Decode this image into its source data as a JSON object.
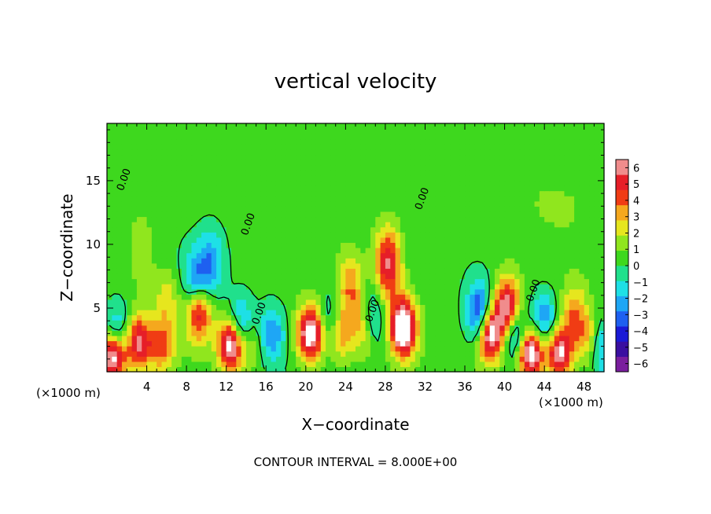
{
  "chart_data": {
    "type": "heatmap",
    "title": "vertical velocity",
    "xlabel": "X−coordinate",
    "ylabel": "Z−coordinate",
    "x_unit_left": "(×1000 m)",
    "x_unit_right": "(×1000 m)",
    "footer": "CONTOUR INTERVAL = 8.000E+00",
    "xlim": [
      0,
      50
    ],
    "ylim": [
      0,
      19.5
    ],
    "x_ticks": [
      {
        "value": 4,
        "label": "4"
      },
      {
        "value": 8,
        "label": "8"
      },
      {
        "value": 12,
        "label": "12"
      },
      {
        "value": 16,
        "label": "16"
      },
      {
        "value": 20,
        "label": "20"
      },
      {
        "value": 24,
        "label": "24"
      },
      {
        "value": 28,
        "label": "28"
      },
      {
        "value": 32,
        "label": "32"
      },
      {
        "value": 36,
        "label": "36"
      },
      {
        "value": 40,
        "label": "40"
      },
      {
        "value": 44,
        "label": "44"
      },
      {
        "value": 48,
        "label": "48"
      }
    ],
    "y_ticks": [
      {
        "value": 5,
        "label": "5"
      },
      {
        "value": 10,
        "label": "10"
      },
      {
        "value": 15,
        "label": "15"
      }
    ],
    "colorbar": {
      "vmin": -6,
      "vmax": 6,
      "ticks": [
        {
          "value": 6,
          "label": "6"
        },
        {
          "value": 5,
          "label": "5"
        },
        {
          "value": 4,
          "label": "4"
        },
        {
          "value": 3,
          "label": "3"
        },
        {
          "value": 2,
          "label": "2"
        },
        {
          "value": 1,
          "label": "1"
        },
        {
          "value": 0,
          "label": "0"
        },
        {
          "value": -1,
          "label": "−1"
        },
        {
          "value": -2,
          "label": "−2"
        },
        {
          "value": -3,
          "label": "−3"
        },
        {
          "value": -4,
          "label": "−4"
        },
        {
          "value": -5,
          "label": "−5"
        },
        {
          "value": -6,
          "label": "−6"
        }
      ],
      "colors": [
        "#7a1e9e",
        "#3a0fa0",
        "#1a1ad6",
        "#1e60f0",
        "#1ea6f5",
        "#1ee0e6",
        "#20e08c",
        "#3ed81e",
        "#90e61e",
        "#e6e61e",
        "#f5a81e",
        "#f03c14",
        "#e61e28",
        "#f08c8c"
      ]
    },
    "contour_labels": [
      {
        "x": 2.0,
        "y": 15.0,
        "text": "0.00"
      },
      {
        "x": 14.5,
        "y": 11.5,
        "text": "0.00"
      },
      {
        "x": 15.6,
        "y": 4.5,
        "text": "0.00"
      },
      {
        "x": 27.0,
        "y": 4.7,
        "text": "0.00"
      },
      {
        "x": 32.0,
        "y": 13.5,
        "text": "0.00"
      },
      {
        "x": 43.2,
        "y": 6.3,
        "text": "0.00"
      }
    ],
    "features": [
      {
        "x": 0.6,
        "z": 1.3,
        "w": 7
      },
      {
        "x": 1.0,
        "z": 3.0,
        "w": -3
      },
      {
        "x": 3.2,
        "z": 2.4,
        "w": 5
      },
      {
        "x": 3.5,
        "z": 9.5,
        "w": 1.5
      },
      {
        "x": 5.5,
        "z": 2.0,
        "w": 3
      },
      {
        "x": 6.0,
        "z": 5.5,
        "w": 2
      },
      {
        "x": 9.0,
        "z": 6.5,
        "w": -5
      },
      {
        "x": 9.2,
        "z": 5.0,
        "w": 7
      },
      {
        "x": 10.5,
        "z": 8.5,
        "w": -2.5
      },
      {
        "x": 12.5,
        "z": 2.2,
        "w": 7
      },
      {
        "x": 13.5,
        "z": 3.5,
        "w": -4
      },
      {
        "x": 14.5,
        "z": 2.5,
        "w": 2
      },
      {
        "x": 16.5,
        "z": 3.0,
        "w": -3
      },
      {
        "x": 20.5,
        "z": 3.0,
        "w": 7
      },
      {
        "x": 22.5,
        "z": 4.0,
        "w": -2
      },
      {
        "x": 23.5,
        "z": 3.0,
        "w": 3
      },
      {
        "x": 24.5,
        "z": 6.5,
        "w": 3
      },
      {
        "x": 26.0,
        "z": 3.5,
        "w": 4
      },
      {
        "x": 26.5,
        "z": 4.0,
        "w": -4
      },
      {
        "x": 28.3,
        "z": 8.5,
        "w": 5
      },
      {
        "x": 29.8,
        "z": 3.5,
        "w": 8
      },
      {
        "x": 37.5,
        "z": 4.5,
        "w": -5
      },
      {
        "x": 38.5,
        "z": 3.0,
        "w": 7
      },
      {
        "x": 40.3,
        "z": 5.0,
        "w": 6
      },
      {
        "x": 41.0,
        "z": 3.0,
        "w": -4
      },
      {
        "x": 42.6,
        "z": 1.5,
        "w": 7
      },
      {
        "x": 44.0,
        "z": 4.0,
        "w": -3
      },
      {
        "x": 45.5,
        "z": 1.6,
        "w": 6
      },
      {
        "x": 47.0,
        "z": 4.5,
        "w": 3
      },
      {
        "x": 48.5,
        "z": 2.5,
        "w": 3
      },
      {
        "x": 49.6,
        "z": 2.0,
        "w": -3
      },
      {
        "x": 12.0,
        "z": 15.0,
        "w": 0.3
      },
      {
        "x": 20.0,
        "z": 17.0,
        "w": 0.5
      },
      {
        "x": 36.0,
        "z": 17.0,
        "w": -0.4
      },
      {
        "x": 44.0,
        "z": 14.0,
        "w": 0.5
      }
    ]
  }
}
